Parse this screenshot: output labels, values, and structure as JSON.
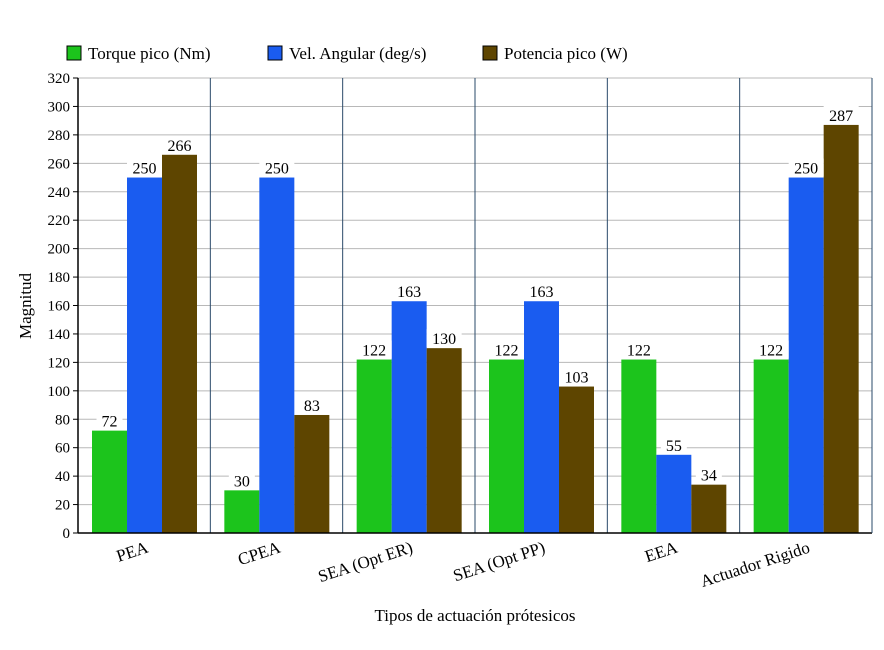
{
  "chart_data": {
    "type": "bar",
    "xlabel": "Tipos de actuación prótesicos",
    "ylabel": "Magnitud",
    "ylim": [
      0,
      320
    ],
    "ytick_step": 20,
    "grid": "on",
    "legend_position": "top",
    "categories": [
      "PEA",
      "CPEA",
      "SEA (Opt ER)",
      "SEA (Opt PP)",
      "EEA",
      "Actuador Rigido"
    ],
    "series": [
      {
        "name": "Torque pico (Nm)",
        "color": "#1cc41c",
        "values": [
          72,
          30,
          122,
          122,
          122,
          122
        ]
      },
      {
        "name": "Vel. Angular (deg/s)",
        "color": "#1a5cf0",
        "values": [
          250,
          250,
          163,
          163,
          55,
          250
        ]
      },
      {
        "name": "Potencia pico (W)",
        "color": "#5e4500",
        "values": [
          266,
          83,
          130,
          103,
          34,
          287
        ]
      }
    ]
  }
}
